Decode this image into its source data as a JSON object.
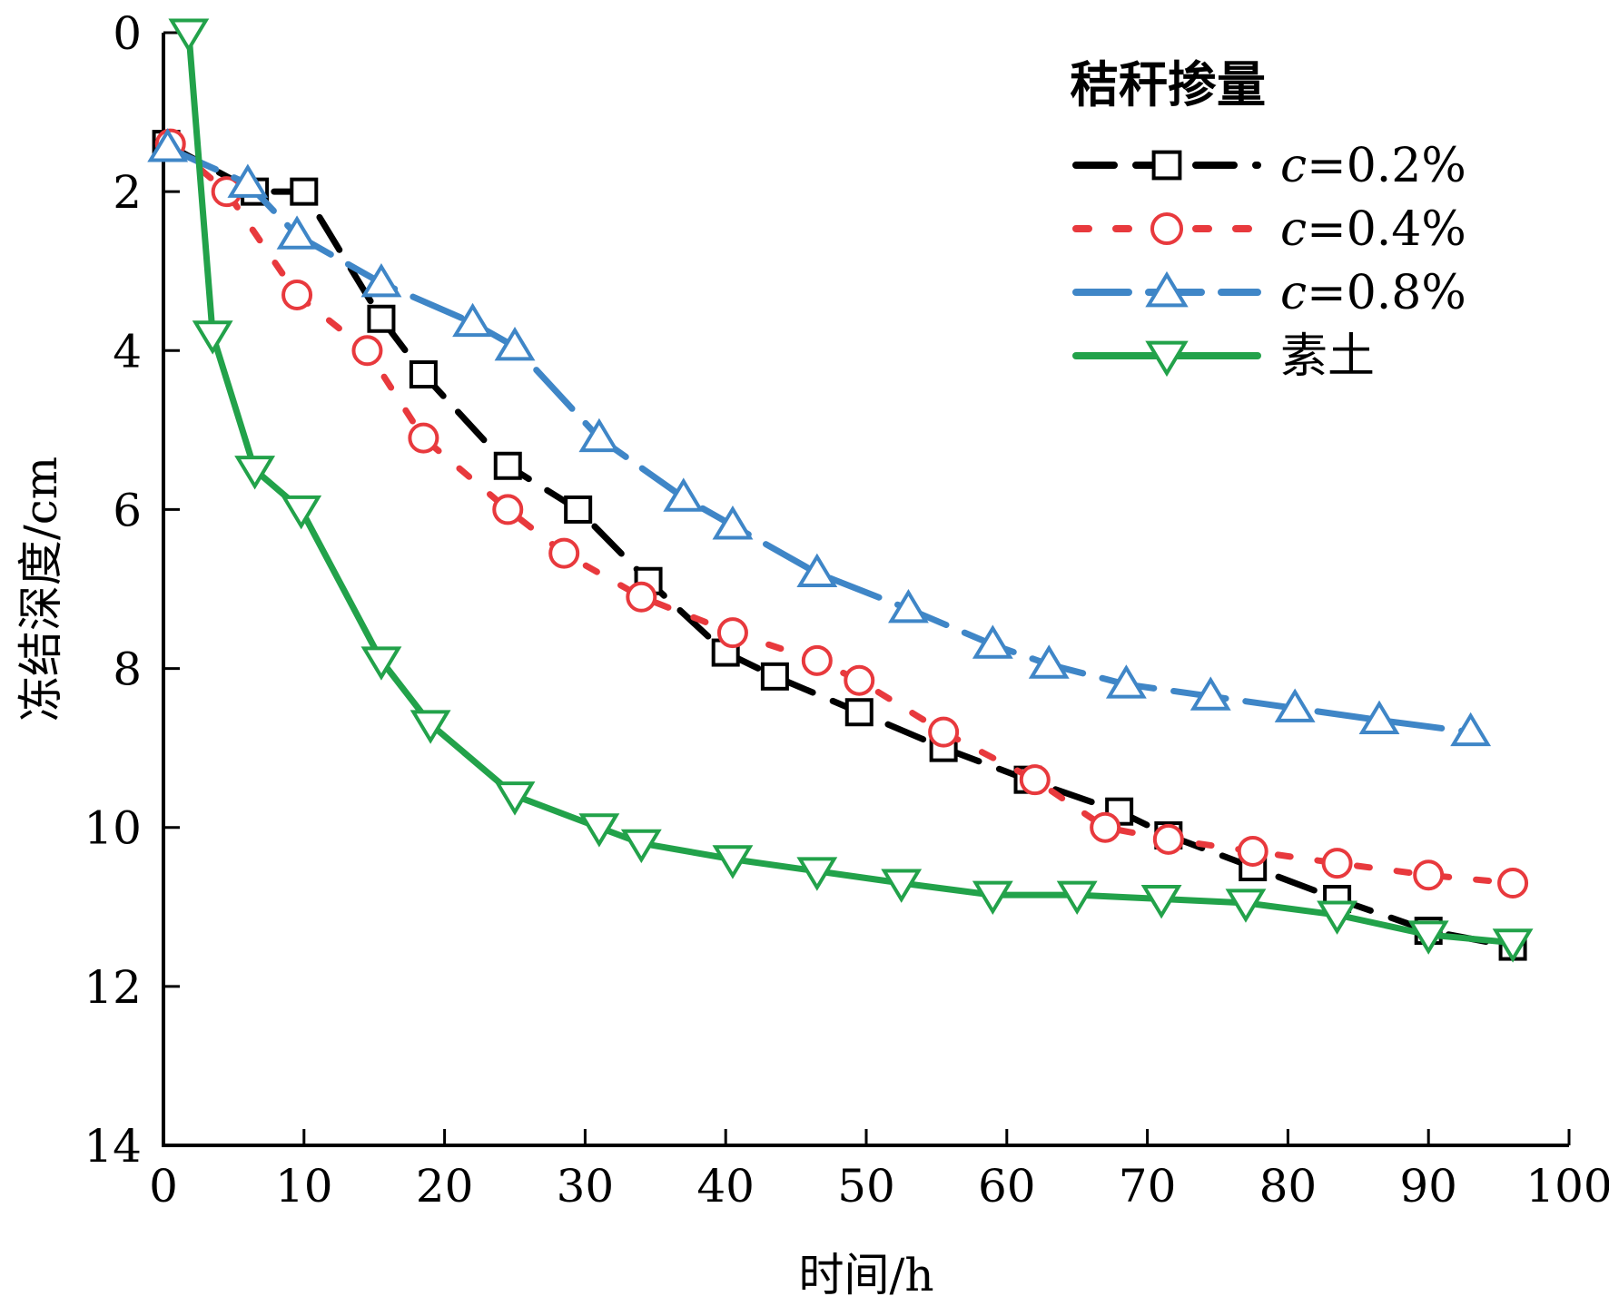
{
  "chart_data": {
    "type": "line",
    "xlabel": "时间/h",
    "ylabel": "冻结深度/cm",
    "xlim": [
      0,
      100
    ],
    "ylim": [
      0,
      14
    ],
    "y_inverted": true,
    "x_ticks": [
      0,
      10,
      20,
      30,
      40,
      50,
      60,
      70,
      80,
      90,
      100
    ],
    "y_ticks": [
      0,
      2,
      4,
      6,
      8,
      10,
      12,
      14
    ],
    "grid": false,
    "legend": {
      "title": "秸秆掺量",
      "position": "top-right"
    },
    "series": [
      {
        "name_prefix": "c",
        "name_suffix": "=0.2%",
        "color": "#000000",
        "marker": "square",
        "line_style": "dash",
        "points": [
          [
            0.2,
            1.4
          ],
          [
            6.5,
            2.0
          ],
          [
            10,
            2.0
          ],
          [
            15.5,
            3.6
          ],
          [
            18.5,
            4.3
          ],
          [
            24.5,
            5.45
          ],
          [
            29.5,
            6.0
          ],
          [
            34.5,
            6.9
          ],
          [
            40,
            7.8
          ],
          [
            43.5,
            8.1
          ],
          [
            49.5,
            8.55
          ],
          [
            55.5,
            9.0
          ],
          [
            61.5,
            9.4
          ],
          [
            68,
            9.8
          ],
          [
            71.5,
            10.1
          ],
          [
            77.5,
            10.5
          ],
          [
            83.5,
            10.9
          ],
          [
            90,
            11.3
          ],
          [
            96,
            11.5
          ]
        ]
      },
      {
        "name_prefix": "c",
        "name_suffix": "=0.4%",
        "color": "#e8393d",
        "marker": "circle",
        "line_style": "dot",
        "points": [
          [
            0.5,
            1.4
          ],
          [
            4.5,
            2.0
          ],
          [
            9.5,
            3.3
          ],
          [
            14.5,
            4.0
          ],
          [
            18.5,
            5.1
          ],
          [
            24.5,
            6.0
          ],
          [
            28.5,
            6.55
          ],
          [
            34,
            7.1
          ],
          [
            40.5,
            7.55
          ],
          [
            46.5,
            7.9
          ],
          [
            49.5,
            8.15
          ],
          [
            55.5,
            8.8
          ],
          [
            62,
            9.4
          ],
          [
            67,
            10.0
          ],
          [
            71.5,
            10.15
          ],
          [
            77.5,
            10.3
          ],
          [
            83.5,
            10.45
          ],
          [
            90,
            10.6
          ],
          [
            96,
            10.7
          ]
        ]
      },
      {
        "name_prefix": "c",
        "name_suffix": "=0.8%",
        "color": "#3f86c7",
        "marker": "triangle-up",
        "line_style": "dashdot",
        "points": [
          [
            0.3,
            1.45
          ],
          [
            6,
            1.9
          ],
          [
            9.5,
            2.55
          ],
          [
            15.5,
            3.15
          ],
          [
            22,
            3.65
          ],
          [
            25,
            3.95
          ],
          [
            31,
            5.1
          ],
          [
            37,
            5.85
          ],
          [
            40.5,
            6.2
          ],
          [
            46.5,
            6.8
          ],
          [
            53,
            7.25
          ],
          [
            59,
            7.7
          ],
          [
            63,
            7.95
          ],
          [
            68.5,
            8.2
          ],
          [
            74.5,
            8.35
          ],
          [
            80.5,
            8.5
          ],
          [
            86.5,
            8.65
          ],
          [
            93,
            8.8
          ]
        ]
      },
      {
        "name": "素土",
        "color": "#22a24a",
        "marker": "triangle-down",
        "line_style": "solid",
        "points": [
          [
            1.8,
            0.0
          ],
          [
            3.5,
            3.8
          ],
          [
            6.5,
            5.5
          ],
          [
            9.8,
            6.0
          ],
          [
            15.5,
            7.9
          ],
          [
            19,
            8.7
          ],
          [
            25,
            9.6
          ],
          [
            31,
            10.0
          ],
          [
            34,
            10.2
          ],
          [
            40.5,
            10.4
          ],
          [
            46.5,
            10.55
          ],
          [
            52.5,
            10.7
          ],
          [
            59,
            10.85
          ],
          [
            65,
            10.85
          ],
          [
            71,
            10.9
          ],
          [
            77,
            10.95
          ],
          [
            83.5,
            11.1
          ],
          [
            90,
            11.35
          ],
          [
            96,
            11.45
          ]
        ]
      }
    ]
  }
}
